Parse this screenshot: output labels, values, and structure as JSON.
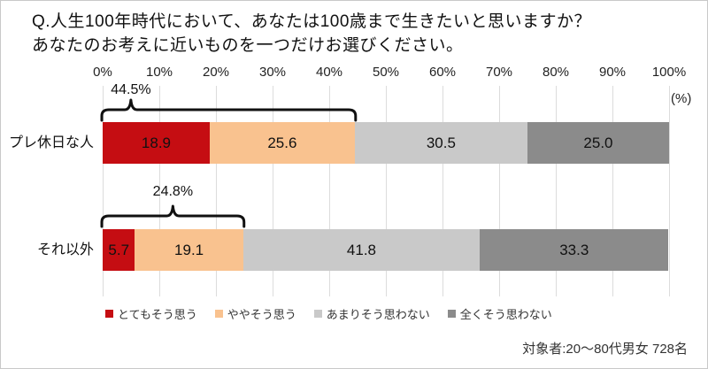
{
  "title": {
    "line1": "Q.人生100年時代において、あなたは100歳まで生きたいと思いますか？",
    "line2": "あなたのお考えに近いものを一つだけお選びください。"
  },
  "axis": {
    "ticks": [
      "0%",
      "10%",
      "20%",
      "30%",
      "40%",
      "50%",
      "60%",
      "70%",
      "80%",
      "90%",
      "100%"
    ],
    "unit_label": "(%)"
  },
  "chart_data": {
    "type": "bar",
    "orientation": "horizontal",
    "stacked": true,
    "title": "Q.人生100年時代において、あなたは100歳まで生きたいと思いますか？ あなたのお考えに近いものを一つだけお選びください。",
    "categories": [
      "プレ休日な人",
      "それ以外"
    ],
    "series": [
      {
        "name": "とてもそう思う",
        "color": "#c50d12",
        "values": [
          18.9,
          5.7
        ]
      },
      {
        "name": "ややそう思う",
        "color": "#f9c28f",
        "values": [
          25.6,
          19.1
        ]
      },
      {
        "name": "あまりそう思わない",
        "color": "#c9c9c9",
        "values": [
          30.5,
          41.8
        ]
      },
      {
        "name": "全くそう思わない",
        "color": "#8b8b8b",
        "values": [
          25.0,
          33.3
        ]
      }
    ],
    "annotations": [
      {
        "category": "プレ休日な人",
        "label": "44.5%",
        "span_pct": 44.5
      },
      {
        "category": "それ以外",
        "label": "24.8%",
        "span_pct": 24.8
      }
    ],
    "xlim": [
      0,
      100
    ],
    "grid": true,
    "legend_position": "bottom"
  },
  "footer": {
    "note": "対象者:20～80代男女  728名"
  }
}
